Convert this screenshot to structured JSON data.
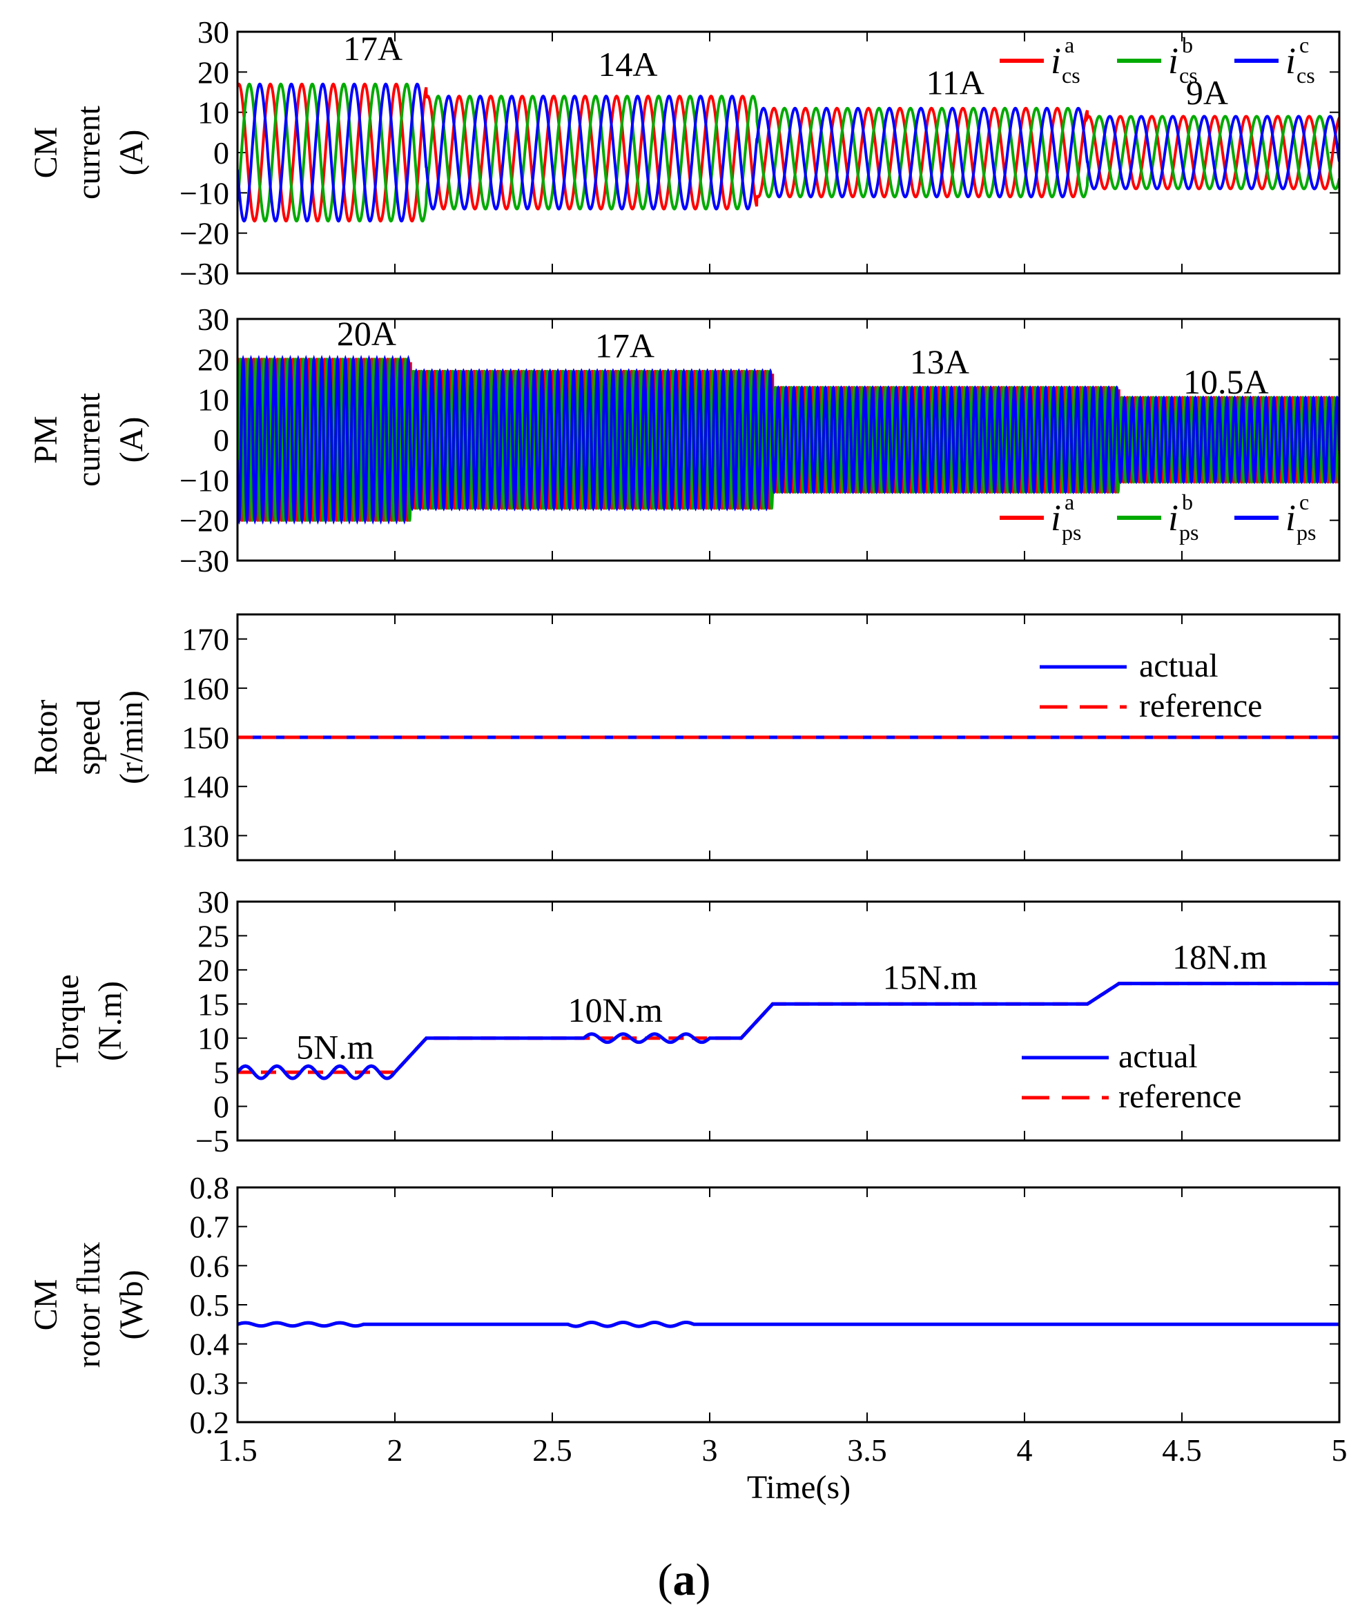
{
  "chart_data": [
    {
      "id": "cm_current",
      "type": "line",
      "ylabel_lines": [
        "CM",
        "current",
        "(A)"
      ],
      "ylim": [
        -30,
        30
      ],
      "yticks": [
        30,
        20,
        10,
        0,
        -10,
        -20,
        -30
      ],
      "xlim": [
        1.5,
        5
      ],
      "series": [
        {
          "name": "a",
          "color": "#ff0000"
        },
        {
          "name": "b",
          "color": "#00aa00"
        },
        {
          "name": "c",
          "color": "#0000ff"
        }
      ],
      "waveform": {
        "freq_hz": 10,
        "segments": [
          {
            "x": [
              1.5,
              2.1
            ],
            "amp": 17
          },
          {
            "x": [
              2.1,
              3.15
            ],
            "amp": 14
          },
          {
            "x": [
              3.15,
              4.2
            ],
            "amp": 11
          },
          {
            "x": [
              4.2,
              5.0
            ],
            "amp": 9
          }
        ]
      },
      "legend": [
        {
          "sym": "i",
          "sup": "a",
          "sub": "cs",
          "color": "#ff0000"
        },
        {
          "sym": "i",
          "sup": "b",
          "sub": "cs",
          "color": "#00aa00"
        },
        {
          "sym": "i",
          "sup": "c",
          "sub": "cs",
          "color": "#0000ff"
        }
      ],
      "legend_position": "top-right",
      "annotations": [
        {
          "text": "17A",
          "x": 1.93,
          "y": 23
        },
        {
          "text": "14A",
          "x": 2.74,
          "y": 19
        },
        {
          "text": "11A",
          "x": 3.78,
          "y": 14.5
        },
        {
          "text": "9A",
          "x": 4.58,
          "y": 12
        }
      ]
    },
    {
      "id": "pm_current",
      "type": "line",
      "ylabel_lines": [
        "PM",
        "current",
        "(A)"
      ],
      "ylim": [
        -30,
        30
      ],
      "yticks": [
        30,
        20,
        10,
        0,
        -10,
        -20,
        -30
      ],
      "xlim": [
        1.5,
        5
      ],
      "series": [
        {
          "name": "a",
          "color": "#ff0000"
        },
        {
          "name": "b",
          "color": "#00aa00"
        },
        {
          "name": "c",
          "color": "#0000ff"
        }
      ],
      "waveform": {
        "freq_hz": 40,
        "segments": [
          {
            "x": [
              1.5,
              2.05
            ],
            "amp": 20
          },
          {
            "x": [
              2.05,
              3.2
            ],
            "amp": 17
          },
          {
            "x": [
              3.2,
              4.3
            ],
            "amp": 13
          },
          {
            "x": [
              4.3,
              5.0
            ],
            "amp": 10.5
          }
        ]
      },
      "legend": [
        {
          "sym": "i",
          "sup": "a",
          "sub": "ps",
          "color": "#ff0000"
        },
        {
          "sym": "i",
          "sup": "b",
          "sub": "ps",
          "color": "#00aa00"
        },
        {
          "sym": "i",
          "sup": "c",
          "sub": "ps",
          "color": "#0000ff"
        }
      ],
      "legend_position": "bottom-right",
      "annotations": [
        {
          "text": "20A",
          "x": 1.91,
          "y": 23.5
        },
        {
          "text": "17A",
          "x": 2.73,
          "y": 20.5
        },
        {
          "text": "13A",
          "x": 3.73,
          "y": 16.5
        },
        {
          "text": "10.5A",
          "x": 4.64,
          "y": 11.5
        }
      ]
    },
    {
      "id": "rotor_speed",
      "type": "line",
      "ylabel_lines": [
        "Rotor",
        "speed",
        "(r/min)"
      ],
      "ylim": [
        125,
        175
      ],
      "yticks": [
        170,
        160,
        150,
        140,
        130
      ],
      "xlim": [
        1.5,
        5
      ],
      "series": [
        {
          "name": "actual",
          "color": "#0000ff",
          "style": "solid",
          "x": [
            1.5,
            5.0
          ],
          "y": [
            150,
            150
          ]
        },
        {
          "name": "reference",
          "color": "#ff0000",
          "style": "dashed",
          "x": [
            1.5,
            5.0
          ],
          "y": [
            150,
            150
          ]
        }
      ],
      "legend": [
        {
          "text": "actual",
          "color": "#0000ff",
          "style": "solid"
        },
        {
          "text": "reference",
          "color": "#ff0000",
          "style": "dashed"
        }
      ],
      "legend_position": "top-right"
    },
    {
      "id": "torque",
      "type": "line",
      "ylabel_lines": [
        "Torque",
        "(N.m)"
      ],
      "ylim": [
        -5,
        30
      ],
      "yticks": [
        30,
        25,
        20,
        15,
        10,
        5,
        0,
        -5
      ],
      "xlim": [
        1.5,
        5
      ],
      "series": [
        {
          "name": "reference",
          "color": "#ff0000",
          "style": "dashed",
          "x": [
            1.5,
            2.0,
            2.1,
            3.1,
            3.2,
            4.2,
            4.3,
            5.0
          ],
          "y": [
            5,
            5,
            10,
            10,
            15,
            15,
            18,
            18
          ]
        },
        {
          "name": "actual",
          "color": "#0000ff",
          "style": "solid",
          "x": [
            1.5,
            2.0,
            2.1,
            3.1,
            3.2,
            4.2,
            4.3,
            5.0
          ],
          "y": [
            5,
            5,
            10,
            10,
            15,
            15,
            18,
            18
          ],
          "ripple": [
            {
              "x": [
                1.5,
                2.0
              ],
              "amp": 0.9
            },
            {
              "x": [
                2.6,
                3.0
              ],
              "amp": 0.6
            }
          ]
        }
      ],
      "legend": [
        {
          "text": "actual",
          "color": "#0000ff",
          "style": "solid"
        },
        {
          "text": "reference",
          "color": "#ff0000",
          "style": "dashed"
        }
      ],
      "legend_position": "lower-right",
      "annotations": [
        {
          "text": "5N.m",
          "x": 1.81,
          "y": 7
        },
        {
          "text": "10N.m",
          "x": 2.7,
          "y": 12.4
        },
        {
          "text": "15N.m",
          "x": 3.7,
          "y": 17.2
        },
        {
          "text": "18N.m",
          "x": 4.62,
          "y": 20.2
        }
      ]
    },
    {
      "id": "cm_rotor_flux",
      "type": "line",
      "ylabel_lines": [
        "CM",
        "rotor flux",
        "(Wb)"
      ],
      "ylim": [
        0.2,
        0.8
      ],
      "yticks": [
        0.8,
        0.7,
        0.6,
        0.5,
        0.4,
        0.3,
        0.2
      ],
      "xlim": [
        1.5,
        5
      ],
      "series": [
        {
          "name": "flux",
          "color": "#0000ff",
          "style": "solid",
          "x": [
            1.5,
            5.0
          ],
          "y": [
            0.45,
            0.45
          ],
          "ripple": [
            {
              "x": [
                1.5,
                1.9
              ],
              "amp": 0.004
            },
            {
              "x": [
                2.55,
                2.95
              ],
              "amp": 0.005
            }
          ]
        }
      ],
      "xticks": [
        1.5,
        2,
        2.5,
        3,
        3.5,
        4,
        4.5,
        5
      ],
      "xlabel": "Time(s)"
    }
  ],
  "caption": {
    "open": "(",
    "letter": "a",
    "close": ")"
  }
}
